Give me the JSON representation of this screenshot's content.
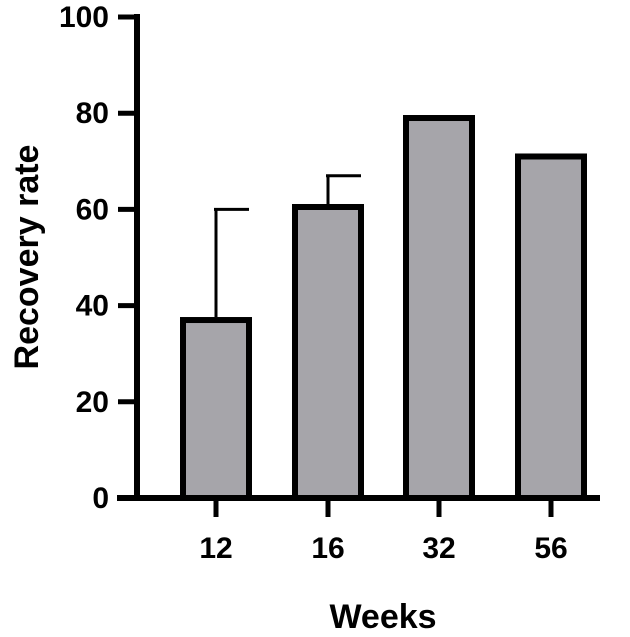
{
  "chart_data": {
    "type": "bar",
    "title": "",
    "xlabel": "Weeks",
    "ylabel": "Recovery rate",
    "ylim": [
      0,
      100
    ],
    "yticks": [
      0,
      20,
      40,
      60,
      80,
      100
    ],
    "categories": [
      "12",
      "16",
      "32",
      "56"
    ],
    "values": [
      37,
      60.5,
      79,
      71
    ],
    "error_upper": [
      60,
      67,
      null,
      null
    ],
    "grid": false,
    "legend": "none",
    "colors": {
      "bar_fill": "#a6a5aa",
      "bar_edge": "#000000",
      "axis": "#000000"
    }
  }
}
